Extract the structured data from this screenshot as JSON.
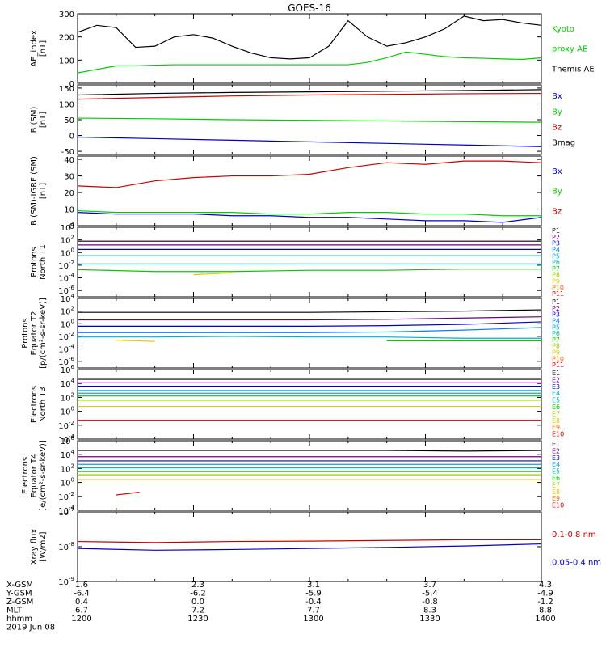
{
  "title": "GOES-16",
  "footer": {
    "row_labels": [
      "X-GSM",
      "Y-GSM",
      "Z-GSM",
      "MLT",
      "hhmm",
      "2019 Jun 08"
    ],
    "columns": [
      [
        "1.6",
        "-6.4",
        "0.4",
        "6.7",
        "1200"
      ],
      [
        "2.3",
        "-6.2",
        "0.0",
        "7.2",
        "1230"
      ],
      [
        "3.1",
        "-5.9",
        "-0.4",
        "7.7",
        "1300"
      ],
      [
        "3.7",
        "-5.4",
        "-0.8",
        "8.3",
        "1330"
      ],
      [
        "4.3",
        "-4.9",
        "-1.2",
        "8.8",
        "1400"
      ]
    ]
  },
  "chart_data": [
    {
      "type": "line",
      "ylabel": [
        "AE_index",
        "[nT]"
      ],
      "ylim": [
        0,
        300
      ],
      "yticks": [
        "0",
        "100",
        "200",
        "300"
      ],
      "legend": [
        {
          "text": "Kyoto",
          "color": "#00cc00"
        },
        {
          "text": "proxy AE",
          "color": "#00cc00"
        },
        {
          "text": "Themis AE",
          "color": "#000000"
        }
      ],
      "x": [
        0,
        5,
        10,
        15,
        20,
        25,
        30,
        35,
        40,
        45,
        50,
        55,
        60,
        65,
        70,
        75,
        80,
        85,
        90,
        95,
        100,
        105,
        110,
        115,
        120
      ],
      "series": [
        {
          "color": "#000000",
          "values": [
            220,
            250,
            240,
            155,
            160,
            200,
            210,
            195,
            160,
            130,
            110,
            105,
            110,
            160,
            270,
            200,
            160,
            175,
            200,
            235,
            290,
            270,
            275,
            260,
            250
          ]
        },
        {
          "color": "#00cc00",
          "values": [
            45,
            60,
            75,
            75,
            78,
            80,
            80,
            80,
            80,
            80,
            80,
            80,
            80,
            80,
            80,
            90,
            110,
            135,
            125,
            115,
            110,
            108,
            105,
            103,
            110
          ]
        }
      ]
    },
    {
      "type": "line",
      "ylabel": [
        "B (SM)",
        "[nT]"
      ],
      "ylim": [
        -60,
        160
      ],
      "yticks": [
        "-50",
        "0",
        "50",
        "100",
        "150"
      ],
      "legend": [
        {
          "text": "Bx",
          "color": "#0000cc"
        },
        {
          "text": "By",
          "color": "#00cc00"
        },
        {
          "text": "Bz",
          "color": "#cc0000"
        },
        {
          "text": "Bmag",
          "color": "#000000"
        }
      ],
      "x": [
        0,
        20,
        40,
        60,
        80,
        100,
        120
      ],
      "series": [
        {
          "color": "#000000",
          "values": [
            128,
            133,
            136,
            138,
            140,
            142,
            145
          ]
        },
        {
          "color": "#cc0000",
          "values": [
            115,
            120,
            125,
            128,
            130,
            132,
            133
          ]
        },
        {
          "color": "#00cc00",
          "values": [
            55,
            53,
            50,
            48,
            46,
            44,
            42
          ]
        },
        {
          "color": "#0000cc",
          "values": [
            -5,
            -10,
            -15,
            -20,
            -25,
            -30,
            -35
          ]
        }
      ]
    },
    {
      "type": "line",
      "ylabel": [
        "B (SM)-IGRF (SM)",
        "[nT]"
      ],
      "ylim": [
        0,
        42
      ],
      "yticks": [
        "0",
        "10",
        "20",
        "30",
        "40"
      ],
      "legend": [
        {
          "text": "Bx",
          "color": "#0000cc"
        },
        {
          "text": "By",
          "color": "#00cc00"
        },
        {
          "text": "Bz",
          "color": "#cc0000"
        }
      ],
      "x": [
        0,
        10,
        20,
        30,
        40,
        50,
        60,
        70,
        80,
        90,
        100,
        110,
        120
      ],
      "series": [
        {
          "color": "#cc0000",
          "values": [
            24,
            23,
            27,
            29,
            30,
            30,
            31,
            35,
            38,
            37,
            39,
            39,
            38
          ]
        },
        {
          "color": "#00cc00",
          "values": [
            9,
            8,
            8,
            8,
            8,
            7,
            7,
            8,
            8,
            7,
            7,
            6,
            6
          ]
        },
        {
          "color": "#0000cc",
          "values": [
            8,
            7,
            7,
            7,
            6,
            6,
            5,
            5,
            4,
            3,
            3,
            2,
            5
          ]
        }
      ]
    },
    {
      "type": "line",
      "log": true,
      "ylabel": [
        "Protons",
        "North T1"
      ],
      "ylim": [
        -7,
        4
      ],
      "yticks": [
        {
          "e": "-6",
          "v": -6
        },
        {
          "e": "-4",
          "v": -4
        },
        {
          "e": "-2",
          "v": -2
        },
        {
          "e": "0",
          "v": 0
        },
        {
          "e": "2",
          "v": 2
        },
        {
          "e": "4",
          "v": 4
        }
      ],
      "legend": [
        {
          "text": "P1",
          "color": "#000000"
        },
        {
          "text": "P2",
          "color": "#6a0080"
        },
        {
          "text": "P3",
          "color": "#0000cc"
        },
        {
          "text": "P4",
          "color": "#0080ff"
        },
        {
          "text": "P5",
          "color": "#00aadd"
        },
        {
          "text": "P6",
          "color": "#00bb99"
        },
        {
          "text": "P7",
          "color": "#00cc00"
        },
        {
          "text": "P8",
          "color": "#99cc00"
        },
        {
          "text": "P9",
          "color": "#ddcc00"
        },
        {
          "text": "P10",
          "color": "#ff6600"
        },
        {
          "text": "P11",
          "color": "#cc0000"
        }
      ],
      "x": [
        0,
        20,
        40,
        60,
        80,
        100,
        120
      ],
      "series": [
        {
          "color": "#000000",
          "values": [
            1.8,
            1.8,
            1.8,
            1.8,
            1.8,
            1.8,
            1.8
          ]
        },
        {
          "color": "#6a0080",
          "values": [
            1.2,
            1.2,
            1.2,
            1.2,
            1.2,
            1.2,
            1.2
          ]
        },
        {
          "color": "#0000cc",
          "values": [
            0.5,
            0.5,
            0.5,
            0.5,
            0.5,
            0.5,
            0.5
          ]
        },
        {
          "color": "#0080ff",
          "values": [
            -0.5,
            -0.5,
            -0.5,
            -0.5,
            -0.5,
            -0.5,
            -0.5
          ]
        },
        {
          "color": "#00aadd",
          "values": [
            -1.8,
            -1.8,
            -1.8,
            -1.8,
            -1.8,
            -1.8,
            -1.8
          ]
        },
        {
          "color": "#00cc00",
          "values": [
            -2.7,
            -3.0,
            -3.0,
            -2.8,
            -2.8,
            -2.6,
            -2.6
          ]
        },
        {
          "color": "#ddcc00",
          "x": [
            30,
            40
          ],
          "values": [
            -3.5,
            -3.2
          ]
        }
      ]
    },
    {
      "type": "line",
      "log": true,
      "ylabel": [
        "Protons",
        "Equator T2",
        "[p/(cm²-s-sr-keV)]"
      ],
      "ylim": [
        -7,
        4
      ],
      "yticks": [
        {
          "e": "-6",
          "v": -6
        },
        {
          "e": "-4",
          "v": -4
        },
        {
          "e": "-2",
          "v": -2
        },
        {
          "e": "0",
          "v": 0
        },
        {
          "e": "2",
          "v": 2
        },
        {
          "e": "4",
          "v": 4
        }
      ],
      "legend": [
        {
          "text": "P1",
          "color": "#000000"
        },
        {
          "text": "P2",
          "color": "#6a0080"
        },
        {
          "text": "P3",
          "color": "#0000cc"
        },
        {
          "text": "P4",
          "color": "#0080ff"
        },
        {
          "text": "P5",
          "color": "#00aadd"
        },
        {
          "text": "P6",
          "color": "#00bb99"
        },
        {
          "text": "P7",
          "color": "#00cc00"
        },
        {
          "text": "P8",
          "color": "#99cc00"
        },
        {
          "text": "P9",
          "color": "#ddcc00"
        },
        {
          "text": "P10",
          "color": "#ff6600"
        },
        {
          "text": "P11",
          "color": "#cc0000"
        }
      ],
      "x": [
        0,
        20,
        40,
        60,
        80,
        100,
        120
      ],
      "series": [
        {
          "color": "#000000",
          "values": [
            1.8,
            1.8,
            1.8,
            1.8,
            1.9,
            2.0,
            2.2
          ]
        },
        {
          "color": "#6a0080",
          "values": [
            0.6,
            0.6,
            0.6,
            0.6,
            0.7,
            0.9,
            1.1
          ]
        },
        {
          "color": "#0000cc",
          "values": [
            -0.4,
            -0.4,
            -0.4,
            -0.4,
            -0.3,
            -0.1,
            0.3
          ]
        },
        {
          "color": "#0080ff",
          "values": [
            -1.4,
            -1.4,
            -1.4,
            -1.4,
            -1.3,
            -1.0,
            -0.6
          ]
        },
        {
          "color": "#00aadd",
          "values": [
            -2.1,
            -2.1,
            -2.0,
            -2.1,
            -2.1,
            -2.3,
            -2.3
          ]
        },
        {
          "color": "#00cc00",
          "x": [
            80,
            120
          ],
          "values": [
            -2.7,
            -2.7
          ]
        },
        {
          "color": "#ddcc00",
          "x": [
            10,
            20
          ],
          "values": [
            -2.6,
            -2.8
          ]
        }
      ]
    },
    {
      "type": "line",
      "log": true,
      "ylabel": [
        "Electrons",
        "North T3"
      ],
      "ylim": [
        -4,
        6
      ],
      "yticks": [
        {
          "e": "-4",
          "v": -4
        },
        {
          "e": "-2",
          "v": -2
        },
        {
          "e": "0",
          "v": 0
        },
        {
          "e": "2",
          "v": 2
        },
        {
          "e": "4",
          "v": 4
        },
        {
          "e": "6",
          "v": 6
        }
      ],
      "legend": [
        {
          "text": "E1",
          "color": "#000000"
        },
        {
          "text": "E2",
          "color": "#6a0080"
        },
        {
          "text": "E3",
          "color": "#0000cc"
        },
        {
          "text": "E4",
          "color": "#00aadd"
        },
        {
          "text": "E5",
          "color": "#00bb99"
        },
        {
          "text": "E6",
          "color": "#00cc00"
        },
        {
          "text": "E7",
          "color": "#99cc00"
        },
        {
          "text": "E8",
          "color": "#ddcc00"
        },
        {
          "text": "E9",
          "color": "#ff6600"
        },
        {
          "text": "E10",
          "color": "#cc0000"
        }
      ],
      "x": [
        0,
        20,
        40,
        60,
        80,
        100,
        120
      ],
      "series": [
        {
          "color": "#000000",
          "values": [
            4.6,
            4.6,
            4.6,
            4.6,
            4.6,
            4.6,
            4.6
          ]
        },
        {
          "color": "#6a0080",
          "values": [
            4.1,
            4.1,
            4.1,
            4.1,
            4.1,
            4.1,
            4.1
          ]
        },
        {
          "color": "#0000cc",
          "values": [
            3.6,
            3.6,
            3.6,
            3.6,
            3.6,
            3.6,
            3.6
          ]
        },
        {
          "color": "#00aadd",
          "values": [
            3.0,
            3.0,
            3.0,
            3.0,
            3.0,
            3.0,
            3.0
          ]
        },
        {
          "color": "#00bb99",
          "values": [
            2.6,
            2.6,
            2.6,
            2.6,
            2.6,
            2.6,
            2.6
          ]
        },
        {
          "color": "#00cc00",
          "values": [
            2.2,
            2.2,
            2.2,
            2.2,
            2.2,
            2.2,
            2.2
          ]
        },
        {
          "color": "#99cc00",
          "values": [
            1.6,
            1.6,
            1.6,
            1.6,
            1.6,
            1.6,
            1.6
          ]
        },
        {
          "color": "#ddcc00",
          "values": [
            0.7,
            0.7,
            0.7,
            0.7,
            0.7,
            0.7,
            0.7
          ]
        },
        {
          "color": "#cc0000",
          "values": [
            -1.3,
            -1.3,
            -1.3,
            -1.3,
            -1.3,
            -1.3,
            -1.3
          ]
        }
      ]
    },
    {
      "type": "line",
      "log": true,
      "ylabel": [
        "Electrons",
        "Equator T4",
        "[e/(cm²-s-sr-keV)]"
      ],
      "ylim": [
        -4,
        6
      ],
      "yticks": [
        {
          "e": "-4",
          "v": -4
        },
        {
          "e": "-2",
          "v": -2
        },
        {
          "e": "0",
          "v": 0
        },
        {
          "e": "2",
          "v": 2
        },
        {
          "e": "4",
          "v": 4
        },
        {
          "e": "6",
          "v": 6
        }
      ],
      "legend": [
        {
          "text": "E1",
          "color": "#000000"
        },
        {
          "text": "E2",
          "color": "#6a0080"
        },
        {
          "text": "E3",
          "color": "#0000cc"
        },
        {
          "text": "E4",
          "color": "#00aadd"
        },
        {
          "text": "E5",
          "color": "#00bb99"
        },
        {
          "text": "E6",
          "color": "#00cc00"
        },
        {
          "text": "E7",
          "color": "#99cc00"
        },
        {
          "text": "E8",
          "color": "#ddcc00"
        },
        {
          "text": "E9",
          "color": "#ff6600"
        },
        {
          "text": "E10",
          "color": "#cc0000"
        }
      ],
      "x": [
        0,
        20,
        40,
        60,
        80,
        100,
        120
      ],
      "series": [
        {
          "color": "#000000",
          "values": [
            4.6,
            4.6,
            4.6,
            4.6,
            4.6,
            4.5,
            4.6
          ]
        },
        {
          "color": "#6a0080",
          "values": [
            3.7,
            3.7,
            3.7,
            3.7,
            3.7,
            3.7,
            3.7
          ]
        },
        {
          "color": "#0000cc",
          "values": [
            3.1,
            3.1,
            3.1,
            3.1,
            3.1,
            3.1,
            3.1
          ]
        },
        {
          "color": "#00aadd",
          "values": [
            2.6,
            2.6,
            2.6,
            2.6,
            2.6,
            2.6,
            2.6
          ]
        },
        {
          "color": "#00bb99",
          "values": [
            2.1,
            2.1,
            2.1,
            2.1,
            2.1,
            2.1,
            2.1
          ]
        },
        {
          "color": "#00cc00",
          "values": [
            1.6,
            1.6,
            1.6,
            1.6,
            1.6,
            1.6,
            1.6
          ]
        },
        {
          "color": "#99cc00",
          "values": [
            1.1,
            1.1,
            1.1,
            1.1,
            1.1,
            1.1,
            1.1
          ]
        },
        {
          "color": "#ddcc00",
          "values": [
            0.4,
            0.4,
            0.4,
            0.4,
            0.4,
            0.4,
            0.4
          ]
        },
        {
          "color": "#cc0000",
          "x": [
            10,
            16
          ],
          "values": [
            -1.8,
            -1.4
          ]
        }
      ]
    },
    {
      "type": "line",
      "log": true,
      "ylabel": [
        "Xray flux",
        "[W/m2]"
      ],
      "ylim": [
        -9,
        -7
      ],
      "yticks": [
        {
          "e": "-9",
          "v": -9
        },
        {
          "e": "-8",
          "v": -8
        },
        {
          "e": "-7",
          "v": -7
        }
      ],
      "legend": [
        {
          "text": "0.1-0.8 nm",
          "color": "#cc0000"
        },
        {
          "text": "0.05-0.4 nm",
          "color": "#0000cc"
        }
      ],
      "x": [
        0,
        20,
        40,
        60,
        80,
        100,
        120
      ],
      "series": [
        {
          "color": "#cc0000",
          "values": [
            -7.85,
            -7.88,
            -7.85,
            -7.84,
            -7.82,
            -7.8,
            -7.8
          ]
        },
        {
          "color": "#0000cc",
          "values": [
            -8.05,
            -8.1,
            -8.08,
            -8.05,
            -8.02,
            -7.98,
            -7.92
          ]
        }
      ]
    }
  ]
}
